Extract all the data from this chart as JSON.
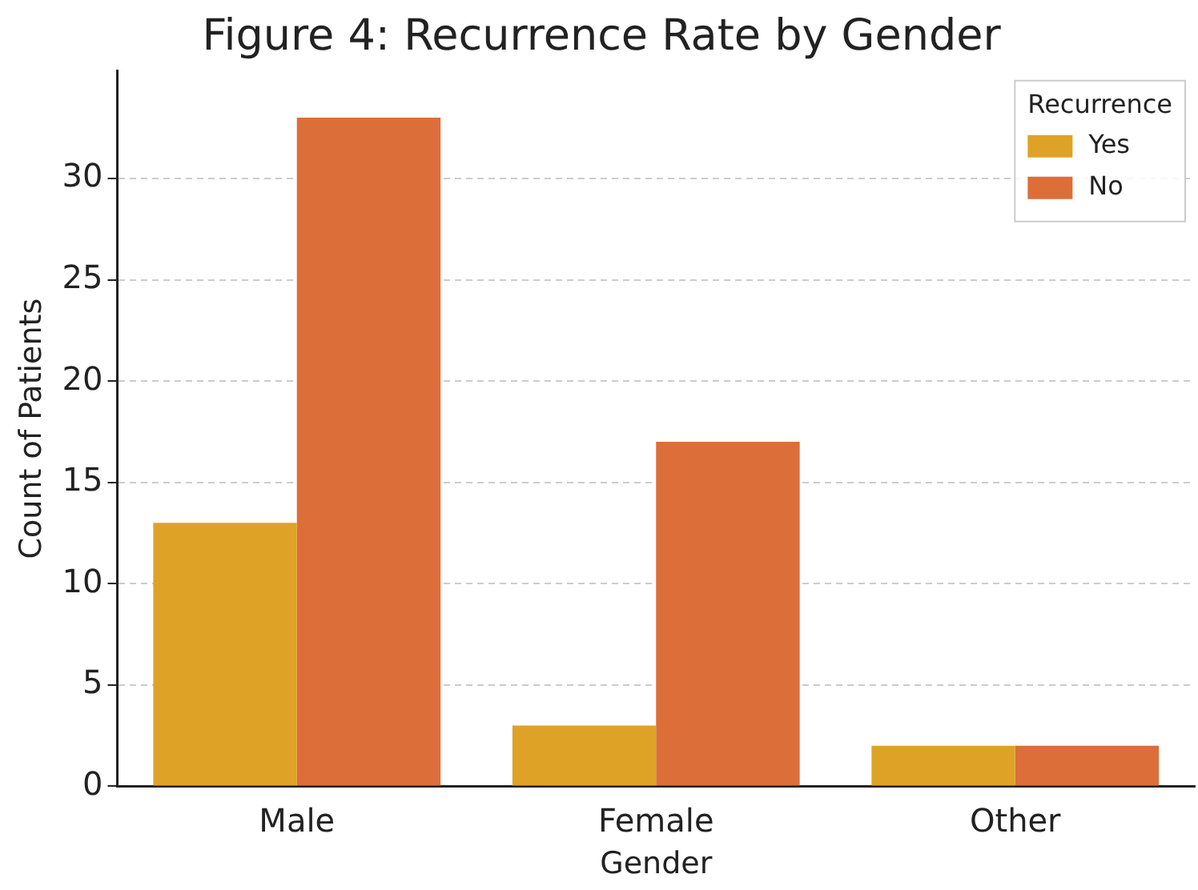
{
  "chart_data": {
    "type": "bar",
    "title": "Figure 4: Recurrence Rate by Gender",
    "xlabel": "Gender",
    "ylabel": "Count of Patients",
    "legend_title": "Recurrence",
    "categories": [
      "Male",
      "Female",
      "Other"
    ],
    "series": [
      {
        "name": "Yes",
        "color": "#dea326",
        "values": [
          13,
          3,
          2
        ]
      },
      {
        "name": "No",
        "color": "#dc6e3a",
        "values": [
          33,
          17,
          2
        ]
      }
    ],
    "ylim": [
      0,
      35.3
    ],
    "yticks": [
      0,
      5,
      10,
      15,
      20,
      25,
      30
    ],
    "grid": "y",
    "legend": "top right"
  }
}
